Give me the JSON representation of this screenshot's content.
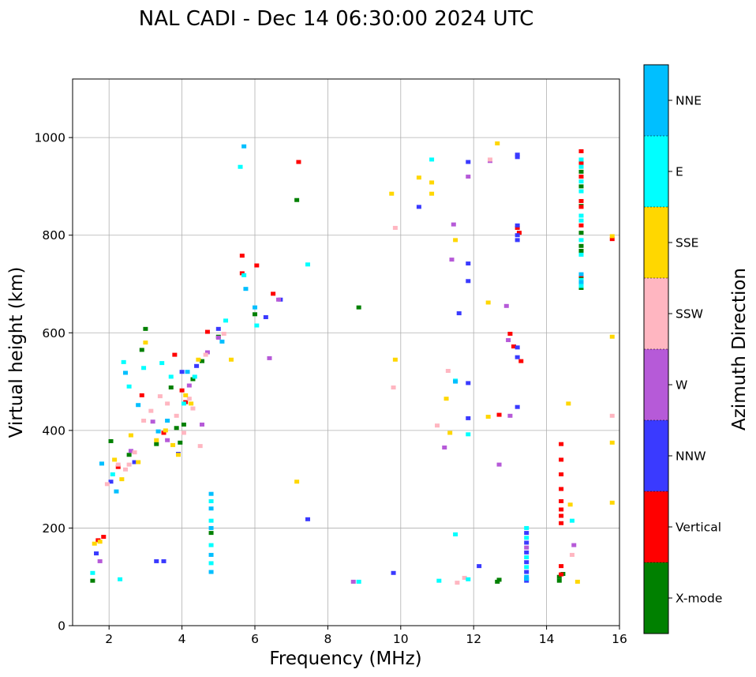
{
  "chart_data": {
    "type": "scatter",
    "title": "NAL CADI - Dec 14 06:30:00 2024 UTC",
    "xlabel": "Frequency (MHz)",
    "ylabel": "Virtual height (km)",
    "xlim": [
      1,
      16
    ],
    "ylim": [
      0,
      1120
    ],
    "xticks": [
      2,
      4,
      6,
      8,
      10,
      12,
      14,
      16
    ],
    "yticks": [
      0,
      200,
      400,
      600,
      800,
      1000
    ],
    "grid": true,
    "colorbar": {
      "label": "Azimuth Direction",
      "categories": [
        {
          "name": "X-mode",
          "color": "#008000"
        },
        {
          "name": "Vertical",
          "color": "#ff0000"
        },
        {
          "name": "NNW",
          "color": "#3a3aff"
        },
        {
          "name": "W",
          "color": "#b65ad8"
        },
        {
          "name": "SSW",
          "color": "#ffb6c1"
        },
        {
          "name": "SSE",
          "color": "#ffd700"
        },
        {
          "name": "E",
          "color": "#00ffff"
        },
        {
          "name": "NNE",
          "color": "#00bfff"
        }
      ]
    },
    "series": [
      {
        "name": "X-mode",
        "points": [
          [
            1.55,
            92
          ],
          [
            2.05,
            378
          ],
          [
            2.55,
            350
          ],
          [
            2.9,
            565
          ],
          [
            3.0,
            608
          ],
          [
            3.3,
            372
          ],
          [
            3.7,
            488
          ],
          [
            3.85,
            405
          ],
          [
            3.95,
            375
          ],
          [
            4.05,
            412
          ],
          [
            4.3,
            505
          ],
          [
            4.55,
            542
          ],
          [
            4.8,
            190
          ],
          [
            5.0,
            592
          ],
          [
            6.0,
            638
          ],
          [
            7.15,
            872
          ],
          [
            8.85,
            652
          ],
          [
            12.65,
            90
          ],
          [
            12.7,
            94
          ],
          [
            14.35,
            92
          ],
          [
            14.35,
            100
          ],
          [
            14.45,
            106
          ],
          [
            14.95,
            930
          ],
          [
            14.95,
            900
          ],
          [
            14.95,
            860
          ],
          [
            14.95,
            805
          ],
          [
            14.95,
            778
          ],
          [
            14.95,
            768
          ],
          [
            14.95,
            712
          ],
          [
            14.95,
            702
          ],
          [
            14.95,
            692
          ]
        ]
      },
      {
        "name": "Vertical",
        "points": [
          [
            1.7,
            175
          ],
          [
            1.85,
            182
          ],
          [
            2.25,
            325
          ],
          [
            2.9,
            472
          ],
          [
            3.5,
            395
          ],
          [
            3.8,
            555
          ],
          [
            4.0,
            482
          ],
          [
            4.1,
            458
          ],
          [
            4.7,
            602
          ],
          [
            5.65,
            758
          ],
          [
            5.65,
            722
          ],
          [
            6.05,
            738
          ],
          [
            6.5,
            680
          ],
          [
            7.2,
            950
          ],
          [
            12.7,
            432
          ],
          [
            13.0,
            598
          ],
          [
            13.1,
            572
          ],
          [
            13.3,
            542
          ],
          [
            13.2,
            815
          ],
          [
            13.25,
            805
          ],
          [
            14.4,
            372
          ],
          [
            14.4,
            340
          ],
          [
            14.4,
            310
          ],
          [
            14.4,
            280
          ],
          [
            14.4,
            255
          ],
          [
            14.4,
            238
          ],
          [
            14.4,
            225
          ],
          [
            14.4,
            210
          ],
          [
            14.4,
            122
          ],
          [
            14.4,
            105
          ],
          [
            14.95,
            972
          ],
          [
            14.95,
            948
          ],
          [
            14.95,
            920
          ],
          [
            14.95,
            870
          ],
          [
            14.95,
            858
          ],
          [
            14.95,
            820
          ],
          [
            14.95,
            718
          ],
          [
            14.95,
            700
          ],
          [
            15.8,
            792
          ]
        ]
      },
      {
        "name": "NNW",
        "points": [
          [
            1.65,
            148
          ],
          [
            2.05,
            295
          ],
          [
            2.7,
            335
          ],
          [
            3.3,
            132
          ],
          [
            3.5,
            132
          ],
          [
            3.9,
            352
          ],
          [
            4.0,
            520
          ],
          [
            4.4,
            532
          ],
          [
            5.0,
            608
          ],
          [
            6.3,
            632
          ],
          [
            6.7,
            668
          ],
          [
            7.45,
            218
          ],
          [
            9.8,
            108
          ],
          [
            10.5,
            858
          ],
          [
            11.6,
            640
          ],
          [
            11.85,
            742
          ],
          [
            11.85,
            706
          ],
          [
            11.85,
            497
          ],
          [
            11.85,
            425
          ],
          [
            11.85,
            950
          ],
          [
            12.15,
            122
          ],
          [
            13.2,
            965
          ],
          [
            13.2,
            960
          ],
          [
            13.2,
            820
          ],
          [
            13.2,
            800
          ],
          [
            13.2,
            790
          ],
          [
            13.2,
            570
          ],
          [
            13.2,
            550
          ],
          [
            13.2,
            448
          ],
          [
            13.45,
            190
          ],
          [
            13.45,
            170
          ],
          [
            13.45,
            150
          ],
          [
            13.45,
            130
          ],
          [
            13.45,
            110
          ],
          [
            13.45,
            92
          ]
        ]
      },
      {
        "name": "W",
        "points": [
          [
            1.75,
            132
          ],
          [
            2.6,
            358
          ],
          [
            3.2,
            418
          ],
          [
            3.6,
            380
          ],
          [
            4.2,
            492
          ],
          [
            4.55,
            412
          ],
          [
            4.7,
            560
          ],
          [
            5.0,
            590
          ],
          [
            6.4,
            548
          ],
          [
            6.65,
            668
          ],
          [
            8.7,
            90
          ],
          [
            11.2,
            365
          ],
          [
            11.4,
            750
          ],
          [
            11.45,
            822
          ],
          [
            11.85,
            920
          ],
          [
            12.45,
            952
          ],
          [
            12.7,
            330
          ],
          [
            12.9,
            655
          ],
          [
            12.95,
            585
          ],
          [
            13.0,
            430
          ],
          [
            13.45,
            160
          ],
          [
            14.75,
            165
          ]
        ]
      },
      {
        "name": "SSW",
        "points": [
          [
            1.95,
            290
          ],
          [
            2.25,
            330
          ],
          [
            2.45,
            320
          ],
          [
            2.55,
            330
          ],
          [
            2.7,
            355
          ],
          [
            2.95,
            420
          ],
          [
            3.15,
            440
          ],
          [
            3.4,
            470
          ],
          [
            3.6,
            455
          ],
          [
            3.85,
            430
          ],
          [
            4.05,
            395
          ],
          [
            4.2,
            465
          ],
          [
            4.3,
            445
          ],
          [
            4.5,
            368
          ],
          [
            4.65,
            555
          ],
          [
            5.15,
            598
          ],
          [
            9.8,
            488
          ],
          [
            9.85,
            815
          ],
          [
            11.0,
            410
          ],
          [
            11.3,
            522
          ],
          [
            11.55,
            88
          ],
          [
            11.75,
            98
          ],
          [
            12.45,
            955
          ],
          [
            14.7,
            145
          ],
          [
            15.8,
            430
          ]
        ]
      },
      {
        "name": "SSE",
        "points": [
          [
            1.6,
            168
          ],
          [
            1.75,
            172
          ],
          [
            2.15,
            340
          ],
          [
            2.35,
            300
          ],
          [
            2.6,
            390
          ],
          [
            2.8,
            335
          ],
          [
            3.0,
            580
          ],
          [
            3.3,
            380
          ],
          [
            3.55,
            400
          ],
          [
            3.75,
            370
          ],
          [
            3.9,
            350
          ],
          [
            4.1,
            472
          ],
          [
            4.25,
            455
          ],
          [
            4.45,
            545
          ],
          [
            5.35,
            545
          ],
          [
            7.15,
            295
          ],
          [
            9.75,
            885
          ],
          [
            9.85,
            545
          ],
          [
            10.5,
            918
          ],
          [
            10.85,
            908
          ],
          [
            10.85,
            885
          ],
          [
            11.25,
            465
          ],
          [
            11.35,
            395
          ],
          [
            11.5,
            790
          ],
          [
            12.4,
            428
          ],
          [
            12.4,
            662
          ],
          [
            12.65,
            988
          ],
          [
            14.6,
            455
          ],
          [
            14.65,
            248
          ],
          [
            14.85,
            90
          ],
          [
            15.8,
            798
          ],
          [
            15.8,
            592
          ],
          [
            15.8,
            375
          ],
          [
            15.8,
            252
          ]
        ]
      },
      {
        "name": "E",
        "points": [
          [
            1.55,
            108
          ],
          [
            2.3,
            95
          ],
          [
            2.1,
            310
          ],
          [
            2.4,
            540
          ],
          [
            2.55,
            490
          ],
          [
            2.95,
            528
          ],
          [
            3.45,
            538
          ],
          [
            3.7,
            510
          ],
          [
            4.05,
            455
          ],
          [
            4.35,
            510
          ],
          [
            4.8,
            255
          ],
          [
            4.8,
            215
          ],
          [
            4.8,
            165
          ],
          [
            4.8,
            128
          ],
          [
            5.2,
            625
          ],
          [
            5.6,
            940
          ],
          [
            5.7,
            718
          ],
          [
            6.05,
            615
          ],
          [
            7.45,
            740
          ],
          [
            8.85,
            90
          ],
          [
            10.85,
            955
          ],
          [
            11.05,
            92
          ],
          [
            11.5,
            502
          ],
          [
            11.5,
            187
          ],
          [
            11.85,
            392
          ],
          [
            11.85,
            95
          ],
          [
            13.45,
            200
          ],
          [
            13.45,
            180
          ],
          [
            13.45,
            140
          ],
          [
            13.45,
            120
          ],
          [
            14.7,
            215
          ],
          [
            14.95,
            955
          ],
          [
            14.95,
            940
          ],
          [
            14.95,
            910
          ],
          [
            14.95,
            890
          ],
          [
            14.95,
            840
          ],
          [
            14.95,
            830
          ],
          [
            14.95,
            790
          ],
          [
            14.95,
            760
          ],
          [
            14.95,
            708
          ],
          [
            14.95,
            696
          ]
        ]
      },
      {
        "name": "NNE",
        "points": [
          [
            1.8,
            332
          ],
          [
            2.2,
            275
          ],
          [
            2.45,
            518
          ],
          [
            2.8,
            452
          ],
          [
            3.35,
            398
          ],
          [
            3.6,
            420
          ],
          [
            4.15,
            520
          ],
          [
            4.8,
            270
          ],
          [
            4.8,
            240
          ],
          [
            4.8,
            200
          ],
          [
            4.8,
            145
          ],
          [
            4.8,
            110
          ],
          [
            5.1,
            582
          ],
          [
            5.7,
            982
          ],
          [
            5.75,
            690
          ],
          [
            6.0,
            652
          ],
          [
            11.5,
            500
          ],
          [
            13.45,
            100
          ],
          [
            13.45,
            96
          ],
          [
            14.95,
            720
          ],
          [
            14.95,
            704
          ]
        ]
      }
    ]
  }
}
